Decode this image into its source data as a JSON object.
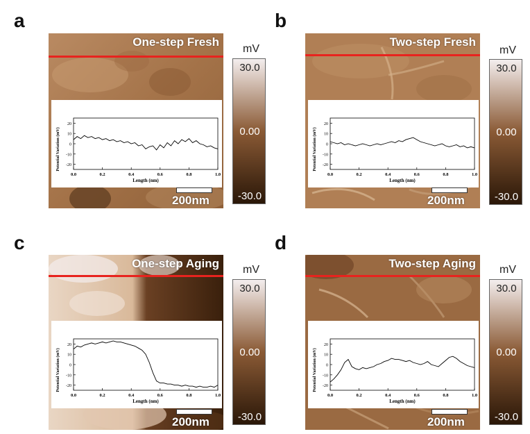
{
  "colorbar": {
    "unit": "mV",
    "ticks": [
      "30.0",
      "0.00",
      "-30.0"
    ],
    "range": [
      -30,
      30
    ]
  },
  "colors": {
    "line": "#e8231e",
    "high": "#f4eeee",
    "mid": "#8a5a35",
    "low": "#2a1708"
  },
  "scale_label": "200nm",
  "panels": [
    {
      "letter": "a",
      "title": "One-step Fresh"
    },
    {
      "letter": "b",
      "title": "Two-step Fresh"
    },
    {
      "letter": "c",
      "title": "One-step Aging"
    },
    {
      "letter": "d",
      "title": "Two-step Aging"
    }
  ],
  "chart_data": [
    {
      "type": "line",
      "xlabel": "Length (nm)",
      "ylabel": "Potential Variation (mV)",
      "xlim": [
        0,
        1.0
      ],
      "ylim": [
        -25,
        25
      ],
      "xticks": [
        "0.0",
        "0.2",
        "0.4",
        "0.6",
        "0.8",
        "1.0"
      ],
      "yticks": [
        "20",
        "10",
        "0",
        "-10",
        "-20"
      ],
      "x": [
        0.0,
        0.025,
        0.05,
        0.075,
        0.1,
        0.125,
        0.15,
        0.175,
        0.2,
        0.225,
        0.25,
        0.275,
        0.3,
        0.325,
        0.35,
        0.375,
        0.4,
        0.425,
        0.45,
        0.475,
        0.5,
        0.525,
        0.55,
        0.575,
        0.6,
        0.625,
        0.65,
        0.675,
        0.7,
        0.725,
        0.75,
        0.775,
        0.8,
        0.825,
        0.85,
        0.875,
        0.9,
        0.925,
        0.95,
        0.975,
        1.0
      ],
      "y": [
        4,
        7,
        5,
        8,
        6,
        7,
        5,
        6,
        4,
        5,
        3,
        4,
        2,
        3,
        1,
        2,
        0,
        1,
        -2,
        -1,
        -5,
        -3,
        -2,
        -6,
        -1,
        -4,
        1,
        -2,
        3,
        0,
        4,
        2,
        5,
        1,
        3,
        0,
        -1,
        -3,
        -2,
        -4,
        -5
      ]
    },
    {
      "type": "line",
      "xlabel": "Length (nm)",
      "ylabel": "Potential Variation (mV)",
      "xlim": [
        0,
        1.0
      ],
      "ylim": [
        -25,
        25
      ],
      "xticks": [
        "0.0",
        "0.2",
        "0.4",
        "0.6",
        "0.8",
        "1.0"
      ],
      "yticks": [
        "20",
        "10",
        "0",
        "-10",
        "-20"
      ],
      "x": [
        0.0,
        0.025,
        0.05,
        0.075,
        0.1,
        0.125,
        0.15,
        0.175,
        0.2,
        0.225,
        0.25,
        0.275,
        0.3,
        0.325,
        0.35,
        0.375,
        0.4,
        0.425,
        0.45,
        0.475,
        0.5,
        0.525,
        0.55,
        0.575,
        0.6,
        0.625,
        0.65,
        0.675,
        0.7,
        0.725,
        0.75,
        0.775,
        0.8,
        0.825,
        0.85,
        0.875,
        0.9,
        0.925,
        0.95,
        0.975,
        1.0
      ],
      "y": [
        2,
        1,
        0,
        1,
        -1,
        0,
        -1,
        -2,
        -1,
        0,
        -1,
        -2,
        -1,
        0,
        -1,
        0,
        1,
        2,
        1,
        3,
        2,
        4,
        5,
        6,
        4,
        2,
        1,
        0,
        -1,
        -2,
        -1,
        0,
        -2,
        -3,
        -2,
        -1,
        -3,
        -2,
        -4,
        -3,
        -4
      ]
    },
    {
      "type": "line",
      "xlabel": "Length (nm)",
      "ylabel": "Potential Variation (mV)",
      "xlim": [
        0,
        1.0
      ],
      "ylim": [
        -25,
        25
      ],
      "xticks": [
        "0.0",
        "0.2",
        "0.4",
        "0.6",
        "0.8",
        "1.0"
      ],
      "yticks": [
        "20",
        "10",
        "0",
        "-10",
        "-20"
      ],
      "x": [
        0.0,
        0.025,
        0.05,
        0.075,
        0.1,
        0.125,
        0.15,
        0.175,
        0.2,
        0.225,
        0.25,
        0.275,
        0.3,
        0.325,
        0.35,
        0.375,
        0.4,
        0.425,
        0.45,
        0.475,
        0.5,
        0.525,
        0.55,
        0.575,
        0.6,
        0.625,
        0.65,
        0.675,
        0.7,
        0.725,
        0.75,
        0.775,
        0.8,
        0.825,
        0.85,
        0.875,
        0.9,
        0.925,
        0.95,
        0.975,
        1.0
      ],
      "y": [
        15,
        18,
        17,
        19,
        20,
        21,
        20,
        21,
        22,
        21,
        22,
        23,
        22,
        22,
        21,
        20,
        19,
        18,
        16,
        14,
        10,
        2,
        -8,
        -16,
        -18,
        -18,
        -19,
        -19,
        -20,
        -20,
        -21,
        -20,
        -21,
        -21,
        -22,
        -21,
        -22,
        -22,
        -21,
        -22,
        -20
      ]
    },
    {
      "type": "line",
      "xlabel": "Length (nm)",
      "ylabel": "Potential Variation (mV)",
      "xlim": [
        0,
        1.0
      ],
      "ylim": [
        -25,
        25
      ],
      "xticks": [
        "0.0",
        "0.2",
        "0.4",
        "0.6",
        "0.8",
        "1.0"
      ],
      "yticks": [
        "20",
        "10",
        "0",
        "-10",
        "-20"
      ],
      "x": [
        0.0,
        0.025,
        0.05,
        0.075,
        0.1,
        0.125,
        0.15,
        0.175,
        0.2,
        0.225,
        0.25,
        0.275,
        0.3,
        0.325,
        0.35,
        0.375,
        0.4,
        0.425,
        0.45,
        0.475,
        0.5,
        0.525,
        0.55,
        0.575,
        0.6,
        0.625,
        0.65,
        0.675,
        0.7,
        0.725,
        0.75,
        0.775,
        0.8,
        0.825,
        0.85,
        0.875,
        0.9,
        0.925,
        0.95,
        0.975,
        1.0
      ],
      "y": [
        -17,
        -14,
        -10,
        -5,
        2,
        5,
        -2,
        -4,
        -5,
        -3,
        -4,
        -3,
        -2,
        0,
        1,
        3,
        4,
        6,
        5,
        5,
        4,
        3,
        4,
        2,
        1,
        0,
        1,
        3,
        0,
        -1,
        -2,
        1,
        4,
        7,
        8,
        6,
        3,
        1,
        -1,
        -2,
        -3
      ]
    }
  ]
}
